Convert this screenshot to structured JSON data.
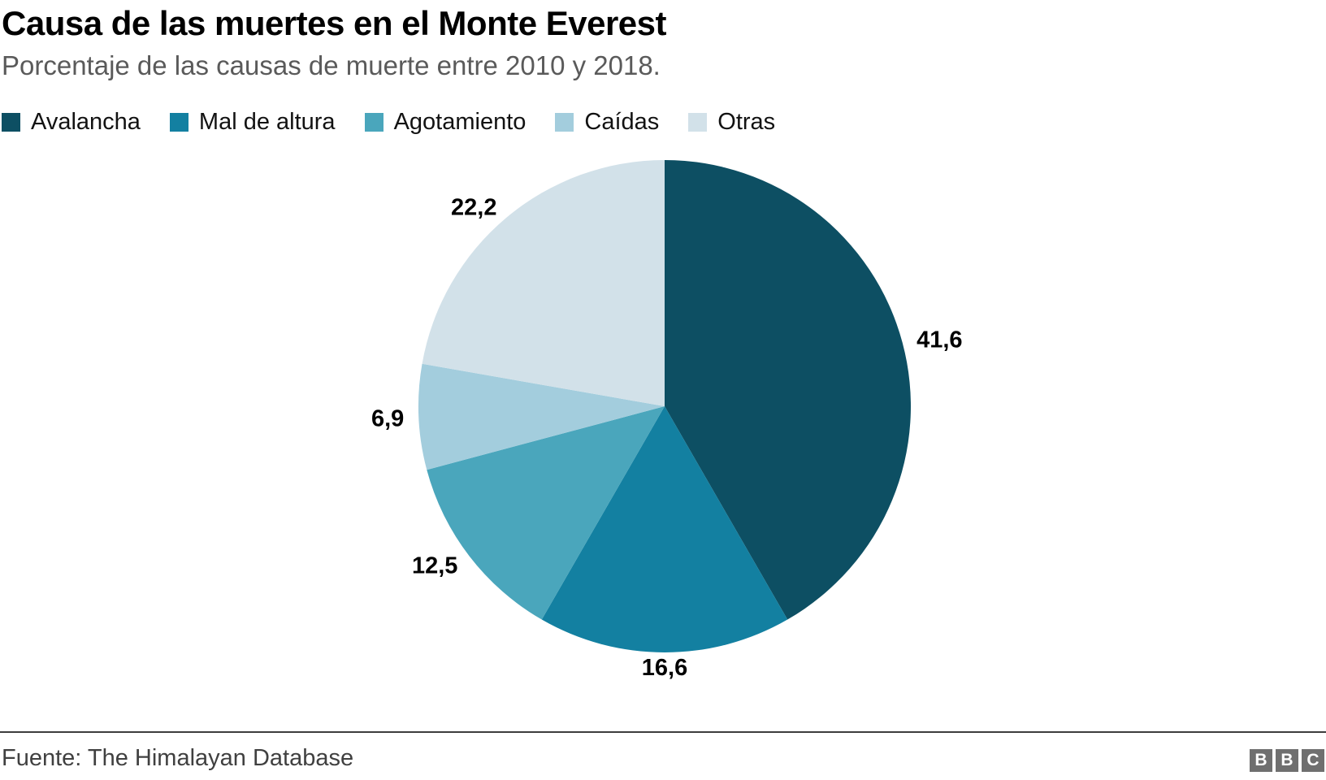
{
  "header": {
    "title": "Causa de las muertes en el Monte Everest",
    "subtitle": "Porcentaje de las causas de muerte entre 2010 y 2018."
  },
  "chart_data": {
    "type": "pie",
    "title": "Causa de las muertes en el Monte Everest",
    "subtitle": "Porcentaje de las causas de muerte entre 2010 y 2018.",
    "unit": "percent",
    "start_angle_deg": 0,
    "direction": "clockwise",
    "legend_position": "top",
    "slices": [
      {
        "label": "Avalancha",
        "value": 41.6,
        "display": "41,6",
        "color": "#0d4f63"
      },
      {
        "label": "Mal de altura",
        "value": 16.6,
        "display": "16,6",
        "color": "#1380a1"
      },
      {
        "label": "Agotamiento",
        "value": 12.5,
        "display": "12,5",
        "color": "#4aa6bc"
      },
      {
        "label": "Caídas",
        "value": 6.9,
        "display": "6,9",
        "color": "#a3cddd"
      },
      {
        "label": "Otras",
        "value": 22.2,
        "display": "22,2",
        "color": "#d2e1e9"
      }
    ]
  },
  "footer": {
    "source": "Fuente: The Himalayan Database",
    "logo_letters": [
      "B",
      "B",
      "C"
    ]
  }
}
